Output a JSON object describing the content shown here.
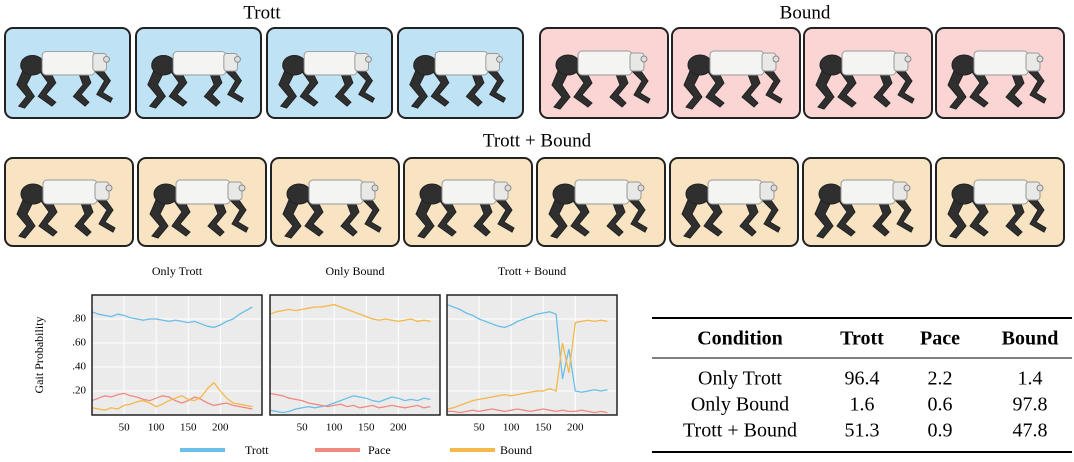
{
  "frames": {
    "top_left_title": "Trott",
    "top_right_title": "Bound",
    "middle_title": "Trott + Bound"
  },
  "chart_data": [
    {
      "type": "line",
      "title": "Only Trott",
      "y_label": "Gait Probability",
      "x": [
        0,
        10,
        20,
        30,
        40,
        50,
        60,
        70,
        80,
        90,
        100,
        110,
        120,
        130,
        140,
        150,
        160,
        170,
        180,
        190,
        200,
        210,
        220,
        230,
        240,
        250
      ],
      "xlim": [
        0,
        265
      ],
      "xticks": [
        50,
        100,
        150,
        200
      ],
      "ylim": [
        0,
        1
      ],
      "yticks": [
        {
          "value": 0.2,
          "label": ".20"
        },
        {
          "value": 0.4,
          "label": ".40"
        },
        {
          "value": 0.6,
          "label": ".60"
        },
        {
          "value": 0.8,
          "label": ".80"
        }
      ],
      "grid": true,
      "series": [
        {
          "name": "Trott",
          "color": "#6bbfe8",
          "values": [
            0.86,
            0.84,
            0.83,
            0.82,
            0.84,
            0.83,
            0.81,
            0.8,
            0.79,
            0.8,
            0.8,
            0.79,
            0.78,
            0.79,
            0.78,
            0.77,
            0.78,
            0.76,
            0.74,
            0.73,
            0.75,
            0.78,
            0.8,
            0.84,
            0.87,
            0.9
          ]
        },
        {
          "name": "Pace",
          "color": "#f08a80",
          "values": [
            0.12,
            0.14,
            0.16,
            0.15,
            0.17,
            0.18,
            0.16,
            0.15,
            0.13,
            0.12,
            0.14,
            0.16,
            0.15,
            0.12,
            0.1,
            0.12,
            0.15,
            0.13,
            0.1,
            0.08,
            0.09,
            0.1,
            0.08,
            0.07,
            0.06,
            0.05
          ]
        },
        {
          "name": "Bound",
          "color": "#f5b84a",
          "values": [
            0.06,
            0.05,
            0.04,
            0.06,
            0.05,
            0.08,
            0.09,
            0.11,
            0.12,
            0.1,
            0.07,
            0.09,
            0.12,
            0.14,
            0.16,
            0.13,
            0.12,
            0.15,
            0.22,
            0.27,
            0.2,
            0.14,
            0.1,
            0.09,
            0.08,
            0.07
          ]
        }
      ]
    },
    {
      "type": "line",
      "title": "Only Bound",
      "x": [
        0,
        10,
        20,
        30,
        40,
        50,
        60,
        70,
        80,
        90,
        100,
        110,
        120,
        130,
        140,
        150,
        160,
        170,
        180,
        190,
        200,
        210,
        220,
        230,
        240,
        250
      ],
      "xlim": [
        0,
        265
      ],
      "xticks": [
        50,
        100,
        150,
        200
      ],
      "ylim": [
        0,
        1
      ],
      "yticks": [
        0.2,
        0.4,
        0.6,
        0.8
      ],
      "grid": true,
      "series": [
        {
          "name": "Trott",
          "color": "#6bbfe8",
          "values": [
            0.04,
            0.03,
            0.02,
            0.03,
            0.05,
            0.06,
            0.07,
            0.06,
            0.07,
            0.08,
            0.1,
            0.12,
            0.14,
            0.16,
            0.15,
            0.14,
            0.12,
            0.11,
            0.13,
            0.15,
            0.14,
            0.12,
            0.13,
            0.12,
            0.14,
            0.13
          ]
        },
        {
          "name": "Pace",
          "color": "#f08a80",
          "values": [
            0.18,
            0.17,
            0.16,
            0.14,
            0.13,
            0.12,
            0.1,
            0.09,
            0.08,
            0.07,
            0.08,
            0.09,
            0.07,
            0.08,
            0.06,
            0.07,
            0.08,
            0.06,
            0.07,
            0.08,
            0.07,
            0.06,
            0.07,
            0.08,
            0.06,
            0.07
          ]
        },
        {
          "name": "Bound",
          "color": "#f5b84a",
          "values": [
            0.84,
            0.86,
            0.87,
            0.88,
            0.87,
            0.88,
            0.89,
            0.9,
            0.9,
            0.91,
            0.92,
            0.9,
            0.88,
            0.86,
            0.84,
            0.82,
            0.8,
            0.79,
            0.8,
            0.79,
            0.78,
            0.79,
            0.8,
            0.78,
            0.79,
            0.78
          ]
        }
      ]
    },
    {
      "type": "line",
      "title": "Trott + Bound",
      "x": [
        0,
        10,
        20,
        30,
        40,
        50,
        60,
        70,
        80,
        90,
        100,
        110,
        120,
        130,
        140,
        150,
        160,
        170,
        180,
        190,
        200,
        210,
        220,
        230,
        240,
        250
      ],
      "xlim": [
        0,
        265
      ],
      "xticks": [
        50,
        100,
        150,
        200
      ],
      "ylim": [
        0,
        1
      ],
      "yticks": [
        0.2,
        0.4,
        0.6,
        0.8
      ],
      "grid": true,
      "series": [
        {
          "name": "Trott",
          "color": "#6bbfe8",
          "values": [
            0.92,
            0.9,
            0.88,
            0.85,
            0.83,
            0.8,
            0.78,
            0.76,
            0.74,
            0.73,
            0.75,
            0.78,
            0.8,
            0.82,
            0.84,
            0.85,
            0.86,
            0.84,
            0.3,
            0.55,
            0.2,
            0.19,
            0.2,
            0.21,
            0.2,
            0.21
          ]
        },
        {
          "name": "Pace",
          "color": "#f08a80",
          "values": [
            0.03,
            0.03,
            0.02,
            0.03,
            0.04,
            0.03,
            0.04,
            0.05,
            0.04,
            0.03,
            0.04,
            0.05,
            0.04,
            0.03,
            0.04,
            0.05,
            0.04,
            0.03,
            0.04,
            0.03,
            0.03,
            0.04,
            0.03,
            0.02,
            0.03,
            0.02
          ]
        },
        {
          "name": "Bound",
          "color": "#f5b84a",
          "values": [
            0.05,
            0.06,
            0.08,
            0.1,
            0.12,
            0.13,
            0.14,
            0.15,
            0.16,
            0.17,
            0.16,
            0.17,
            0.18,
            0.19,
            0.2,
            0.2,
            0.22,
            0.2,
            0.6,
            0.35,
            0.77,
            0.78,
            0.79,
            0.78,
            0.79,
            0.78
          ]
        }
      ]
    }
  ],
  "table": {
    "header": [
      "Condition",
      "Trott",
      "Pace",
      "Bound"
    ],
    "rows": [
      [
        "Only Trott",
        96.4,
        2.2,
        1.4
      ],
      [
        "Only Bound",
        1.6,
        0.6,
        97.8
      ],
      [
        "Trott + Bound",
        51.3,
        0.9,
        47.8
      ]
    ]
  }
}
